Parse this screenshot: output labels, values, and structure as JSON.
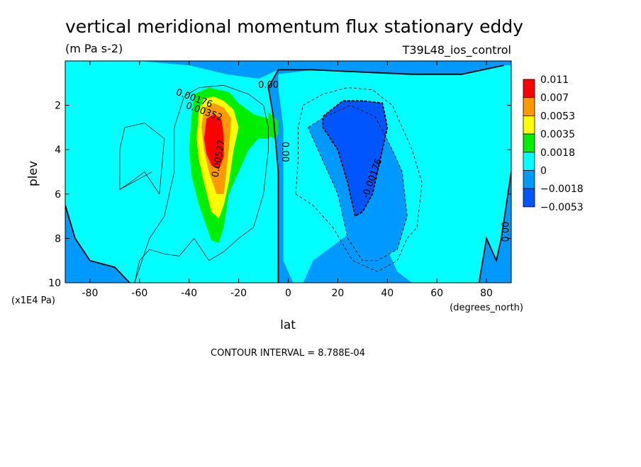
{
  "chart_data": {
    "type": "heatmap",
    "title": "vertical meridional momentum flux stationary eddy",
    "units": "(m Pa s-2)",
    "dataset": "T39L48_ios_control",
    "xlabel": "lat",
    "xunits": "(degrees_north)",
    "ylabel": "plev",
    "yunits": "(x1E4 Pa)",
    "xlim": [
      -90,
      90
    ],
    "ylim": [
      10,
      0
    ],
    "x_ticks": [
      -80,
      -60,
      -40,
      -20,
      0,
      20,
      40,
      60,
      80
    ],
    "y_ticks": [
      2,
      4,
      6,
      8,
      10
    ],
    "contour_interval_text": "CONTOUR INTERVAL = 8.788E-04",
    "legend": {
      "labels": [
        "0.011",
        "0.007",
        "0.0053",
        "0.0035",
        "0.0018",
        "0",
        "−0.0018",
        "−0.0053"
      ],
      "colors": [
        "#ff0000",
        "#ff9900",
        "#ffff00",
        "#00ee00",
        "#00ffff",
        "#0099ff",
        "#0055ff"
      ]
    },
    "contour_labels": [
      {
        "text": "0.00",
        "lat": -8,
        "plev": 1.1
      },
      {
        "text": "0.00176",
        "lat": -38,
        "plev": 1.7
      },
      {
        "text": "0.00352",
        "lat": -34,
        "plev": 2.3
      },
      {
        "text": "0.00527",
        "lat": -28,
        "plev": 4.4
      },
      {
        "text": "0.00",
        "lat": -1.5,
        "plev": 4.1
      },
      {
        "text": "-0.00176",
        "lat": 34,
        "plev": 5.3
      },
      {
        "text": "0.00",
        "lat": 88,
        "plev": 7.7
      }
    ],
    "regions": [
      {
        "level": 0.0,
        "color": "#0099ff",
        "points": [
          [
            -10,
            0
          ],
          [
            90,
            0
          ],
          [
            90,
            10
          ],
          [
            -4,
            10
          ],
          [
            -4,
            7
          ],
          [
            -4,
            5
          ],
          [
            -6,
            2.5
          ],
          [
            -8,
            1.2
          ],
          [
            -4,
            0.4
          ]
        ]
      },
      {
        "level": 0.0,
        "color": "#0099ff",
        "points": [
          [
            -90,
            0
          ],
          [
            -60,
            0
          ],
          [
            -40,
            0.2
          ],
          [
            -25,
            0.6
          ],
          [
            -12,
            0.8
          ],
          [
            -4,
            0.4
          ],
          [
            -10,
            0
          ]
        ]
      },
      {
        "level": 0.0,
        "color": "#0099ff",
        "points": [
          [
            -90,
            6.5
          ],
          [
            -86,
            8
          ],
          [
            -80,
            9
          ],
          [
            -70,
            9.3
          ],
          [
            -64,
            10
          ],
          [
            -90,
            10
          ]
        ]
      },
      {
        "level": 0.0,
        "color": "#00ffff",
        "points": [
          [
            -4,
            0.6
          ],
          [
            10,
            0.4
          ],
          [
            30,
            0.5
          ],
          [
            50,
            0.6
          ],
          [
            70,
            0.6
          ],
          [
            87,
            0.2
          ],
          [
            90,
            0.2
          ],
          [
            90,
            5
          ],
          [
            86,
            8
          ],
          [
            84,
            9
          ],
          [
            80,
            8
          ],
          [
            77,
            10
          ],
          [
            50,
            10
          ],
          [
            44,
            9.5
          ],
          [
            40,
            8.5
          ],
          [
            36,
            7.5
          ],
          [
            36,
            7
          ],
          [
            30,
            7
          ],
          [
            28,
            7.5
          ],
          [
            22,
            8
          ],
          [
            16,
            8.5
          ],
          [
            10,
            9
          ],
          [
            6,
            10
          ],
          [
            2,
            10
          ],
          [
            -2,
            9
          ],
          [
            -2,
            6
          ],
          [
            -2,
            3
          ],
          [
            -4,
            1.2
          ]
        ]
      },
      {
        "level": -0.0018,
        "color": "#0099ff",
        "points": [
          [
            8,
            3
          ],
          [
            15,
            2.5
          ],
          [
            25,
            2
          ],
          [
            35,
            2.5
          ],
          [
            42,
            4
          ],
          [
            46,
            5
          ],
          [
            48,
            7
          ],
          [
            44,
            8.5
          ],
          [
            36,
            9
          ],
          [
            30,
            9
          ],
          [
            24,
            8
          ],
          [
            20,
            6
          ],
          [
            14,
            4.5
          ],
          [
            10,
            3.5
          ]
        ]
      },
      {
        "level": -0.0035,
        "color": "#0055ff",
        "points": [
          [
            14,
            2.5
          ],
          [
            22,
            1.8
          ],
          [
            30,
            1.8
          ],
          [
            38,
            1.9
          ],
          [
            40,
            3
          ],
          [
            38,
            4
          ],
          [
            36,
            5
          ],
          [
            34,
            6
          ],
          [
            30,
            6.8
          ],
          [
            27,
            7
          ],
          [
            24,
            5.5
          ],
          [
            20,
            4
          ],
          [
            14,
            3
          ]
        ]
      },
      {
        "level": 0.0018,
        "color": "#00ee00",
        "points": [
          [
            -40,
            4
          ],
          [
            -39,
            2.5
          ],
          [
            -38,
            1.5
          ],
          [
            -32,
            1.2
          ],
          [
            -24,
            1.4
          ],
          [
            -20,
            1.9
          ],
          [
            -14,
            2.4
          ],
          [
            -8,
            2.6
          ],
          [
            -6,
            3.3
          ],
          [
            -8,
            3.5
          ],
          [
            -12,
            3.5
          ],
          [
            -16,
            4
          ],
          [
            -20,
            5
          ],
          [
            -24,
            6
          ],
          [
            -26,
            7.5
          ],
          [
            -28,
            8.2
          ],
          [
            -31,
            8.1
          ],
          [
            -36,
            6.5
          ],
          [
            -39,
            5.2
          ]
        ]
      },
      {
        "level": 0.0035,
        "color": "#ffff00",
        "points": [
          [
            -37,
            3.5
          ],
          [
            -36,
            2.2
          ],
          [
            -34,
            1.7
          ],
          [
            -30,
            1.6
          ],
          [
            -26,
            1.8
          ],
          [
            -22,
            2.2
          ],
          [
            -20,
            3
          ],
          [
            -22,
            4
          ],
          [
            -24,
            5.5
          ],
          [
            -26,
            6.5
          ],
          [
            -28,
            7.1
          ],
          [
            -31,
            6.8
          ],
          [
            -34,
            5.5
          ],
          [
            -36,
            4.5
          ]
        ]
      },
      {
        "level": 0.0053,
        "color": "#ff9900",
        "points": [
          [
            -35,
            3
          ],
          [
            -34,
            2.1
          ],
          [
            -30,
            1.9
          ],
          [
            -26,
            2.1
          ],
          [
            -23,
            2.6
          ],
          [
            -24,
            4
          ],
          [
            -25,
            5
          ],
          [
            -26,
            6
          ],
          [
            -29,
            6
          ],
          [
            -32,
            5
          ],
          [
            -34,
            4
          ]
        ]
      },
      {
        "level": 0.007,
        "color": "#ff0000",
        "points": [
          [
            -34,
            3.5
          ],
          [
            -33,
            2.6
          ],
          [
            -30,
            2.4
          ],
          [
            -27,
            2.6
          ],
          [
            -26,
            3.4
          ],
          [
            -26,
            4.3
          ],
          [
            -28,
            4.9
          ],
          [
            -31,
            4.7
          ],
          [
            -33,
            4.2
          ]
        ]
      },
      {
        "level": 0.0018,
        "color": "#00ee00",
        "points": [
          [
            -8,
            2.3
          ],
          [
            -4,
            2.7
          ],
          [
            -4,
            3.3
          ],
          [
            -6,
            3.5
          ],
          [
            -8,
            3.3
          ]
        ]
      }
    ],
    "contours": [
      {
        "level": 0.0,
        "style": "thick",
        "points": [
          [
            -90,
            6.5
          ],
          [
            -86,
            8
          ],
          [
            -80,
            9
          ],
          [
            -70,
            9.3
          ],
          [
            -64,
            10
          ]
        ]
      },
      {
        "level": 0.0,
        "style": "thick",
        "points": [
          [
            -4,
            10
          ],
          [
            -4,
            7
          ],
          [
            -4,
            5
          ],
          [
            -6,
            2.5
          ],
          [
            -8,
            1.2
          ],
          [
            -4,
            0.4
          ],
          [
            10,
            0.4
          ],
          [
            30,
            0.5
          ],
          [
            50,
            0.6
          ],
          [
            70,
            0.6
          ],
          [
            87,
            0.2
          ]
        ]
      },
      {
        "level": 0.0,
        "style": "thick",
        "points": [
          [
            77,
            10
          ],
          [
            80,
            8
          ],
          [
            84,
            9
          ],
          [
            86,
            8
          ],
          [
            90,
            5
          ]
        ]
      },
      {
        "level": 0.00088,
        "style": "thin",
        "points": [
          [
            -62,
            10
          ],
          [
            -60,
            9
          ],
          [
            -56,
            8.5
          ],
          [
            -50,
            8.7
          ],
          [
            -44,
            8.8
          ],
          [
            -38,
            8
          ],
          [
            -32,
            9
          ],
          [
            -26,
            8.6
          ],
          [
            -20,
            8
          ],
          [
            -14,
            7.5
          ],
          [
            -10,
            6
          ],
          [
            -8,
            4
          ],
          [
            -8,
            3
          ],
          [
            -10,
            2
          ],
          [
            -16,
            1.5
          ],
          [
            -26,
            1.1
          ],
          [
            -36,
            1.2
          ],
          [
            -42,
            1.6
          ],
          [
            -46,
            3
          ],
          [
            -46,
            5
          ],
          [
            -50,
            7
          ],
          [
            -56,
            8
          ],
          [
            -62,
            10
          ]
        ]
      },
      {
        "level": 0.00088,
        "style": "thin",
        "points": [
          [
            -55,
            5
          ],
          [
            -68,
            5.8
          ],
          [
            -64,
            5.5
          ],
          [
            -58,
            5
          ],
          [
            -52,
            6
          ],
          [
            -50,
            3.5
          ],
          [
            -58,
            2.8
          ],
          [
            -66,
            3
          ],
          [
            -68,
            4
          ],
          [
            -68,
            5.8
          ]
        ]
      },
      {
        "level": -0.00088,
        "style": "dashed",
        "points": [
          [
            3,
            6
          ],
          [
            4,
            4.5
          ],
          [
            4,
            3
          ],
          [
            6,
            2
          ],
          [
            14,
            1.5
          ],
          [
            24,
            1.2
          ],
          [
            34,
            1.3
          ],
          [
            42,
            2
          ],
          [
            50,
            4
          ],
          [
            54,
            5.5
          ],
          [
            52,
            7.5
          ],
          [
            48,
            8
          ],
          [
            44,
            9
          ],
          [
            36,
            9.5
          ],
          [
            26,
            9
          ],
          [
            18,
            7.5
          ],
          [
            10,
            6.5
          ],
          [
            3,
            6
          ]
        ]
      },
      {
        "level": -0.0018,
        "style": "dashed",
        "points": [
          [
            8,
            3
          ],
          [
            15,
            2.5
          ],
          [
            25,
            2
          ],
          [
            35,
            2.5
          ],
          [
            42,
            4
          ],
          [
            46,
            5
          ],
          [
            48,
            7
          ],
          [
            44,
            8.5
          ],
          [
            36,
            9
          ],
          [
            30,
            9
          ],
          [
            24,
            8
          ],
          [
            20,
            6
          ],
          [
            14,
            4.5
          ],
          [
            10,
            3.5
          ],
          [
            8,
            3
          ]
        ]
      },
      {
        "level": -0.0035,
        "style": "thick-dashed",
        "points": [
          [
            14,
            2.5
          ],
          [
            22,
            1.8
          ],
          [
            30,
            1.8
          ],
          [
            38,
            1.9
          ],
          [
            40,
            3
          ],
          [
            38,
            4
          ],
          [
            36,
            5
          ],
          [
            34,
            6
          ],
          [
            30,
            6.8
          ],
          [
            27,
            7
          ],
          [
            24,
            5.5
          ],
          [
            20,
            4
          ],
          [
            14,
            3
          ],
          [
            14,
            2.5
          ]
        ]
      }
    ]
  }
}
